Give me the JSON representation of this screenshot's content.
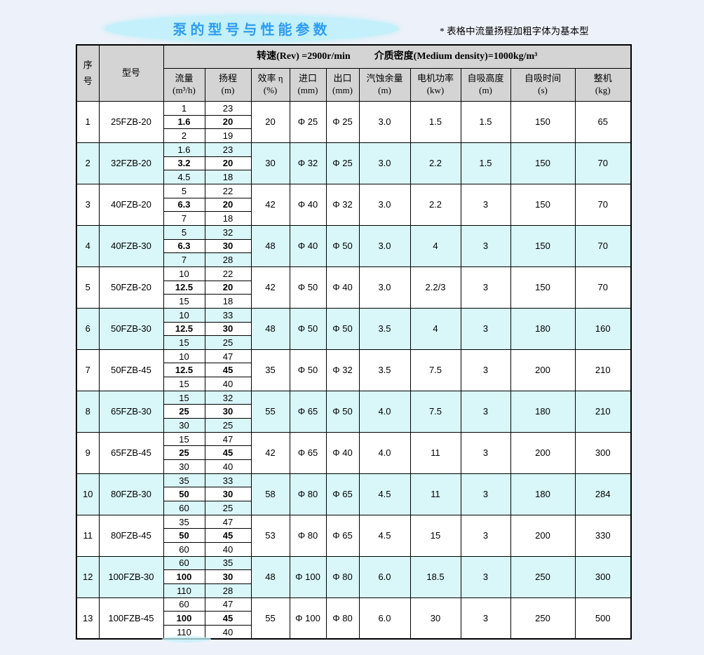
{
  "page": {
    "title": "泵的型号与性能参数",
    "note": "*  表格中流量扬程加粗字体为基本型"
  },
  "colors": {
    "page_background": "#edf1f9",
    "header_gray": "#d4d4d4",
    "alt_row_cyan": "#d9f6f8",
    "title_blue": "#2e9cf3",
    "ellipse_cyan": "#c3f0fa",
    "border_black": "#000000"
  },
  "table": {
    "corner_header": "序号",
    "model_header": "型号",
    "conditions": {
      "speed": "转速(Rev) =2900r/min",
      "density": "介质密度(Medium density)=1000kg/m³"
    },
    "sub_headers": [
      {
        "key": "flow",
        "label": "流量",
        "unit": "(m³/h)"
      },
      {
        "key": "head",
        "label": "扬程",
        "unit": "(m)"
      },
      {
        "key": "efficiency",
        "label": "效率 η",
        "unit": "(%)"
      },
      {
        "key": "inlet",
        "label": "进口",
        "unit": "(mm)"
      },
      {
        "key": "outlet",
        "label": "出口",
        "unit": "(mm)"
      },
      {
        "key": "npsh",
        "label": "汽蚀余量",
        "unit": "(m)"
      },
      {
        "key": "motor-power",
        "label": "电机功率",
        "unit": "(kw)"
      },
      {
        "key": "suction-height",
        "label": "自吸高度",
        "unit": "(m)"
      },
      {
        "key": "suction-time",
        "label": "自吸时间",
        "unit": "(s)"
      },
      {
        "key": "weight",
        "label": "整机",
        "unit": "(kg)"
      }
    ],
    "rows": [
      {
        "no": "1",
        "model": "25FZB-20",
        "flow": [
          "1",
          "1.6",
          "2"
        ],
        "head": [
          "23",
          "20",
          "19"
        ],
        "eff": "20",
        "inlet": "Φ 25",
        "outlet": "Φ 25",
        "npsh": "3.0",
        "power": "1.5",
        "suction_height": "1.5",
        "suction_time": "150",
        "weight": "65"
      },
      {
        "no": "2",
        "model": "32FZB-20",
        "flow": [
          "1.6",
          "3.2",
          "4.5"
        ],
        "head": [
          "23",
          "20",
          "18"
        ],
        "eff": "30",
        "inlet": "Φ 32",
        "outlet": "Φ 25",
        "npsh": "3.0",
        "power": "2.2",
        "suction_height": "1.5",
        "suction_time": "150",
        "weight": "70"
      },
      {
        "no": "3",
        "model": "40FZB-20",
        "flow": [
          "5",
          "6.3",
          "7"
        ],
        "head": [
          "22",
          "20",
          "18"
        ],
        "eff": "42",
        "inlet": "Φ 40",
        "outlet": "Φ 32",
        "npsh": "3.0",
        "power": "2.2",
        "suction_height": "3",
        "suction_time": "150",
        "weight": "70"
      },
      {
        "no": "4",
        "model": "40FZB-30",
        "flow": [
          "5",
          "6.3",
          "7"
        ],
        "head": [
          "32",
          "30",
          "28"
        ],
        "eff": "48",
        "inlet": "Φ 40",
        "outlet": "Φ 50",
        "npsh": "3.0",
        "power": "4",
        "suction_height": "3",
        "suction_time": "150",
        "weight": "70"
      },
      {
        "no": "5",
        "model": "50FZB-20",
        "flow": [
          "10",
          "12.5",
          "15"
        ],
        "head": [
          "22",
          "20",
          "18"
        ],
        "eff": "42",
        "inlet": "Φ 50",
        "outlet": "Φ 40",
        "npsh": "3.0",
        "power": "2.2/3",
        "suction_height": "3",
        "suction_time": "150",
        "weight": "70"
      },
      {
        "no": "6",
        "model": "50FZB-30",
        "flow": [
          "10",
          "12.5",
          "15"
        ],
        "head": [
          "33",
          "30",
          "25"
        ],
        "eff": "48",
        "inlet": "Φ 50",
        "outlet": "Φ 50",
        "npsh": "3.5",
        "power": "4",
        "suction_height": "3",
        "suction_time": "180",
        "weight": "160"
      },
      {
        "no": "7",
        "model": "50FZB-45",
        "flow": [
          "10",
          "12.5",
          "15"
        ],
        "head": [
          "47",
          "45",
          "40"
        ],
        "eff": "35",
        "inlet": "Φ 50",
        "outlet": "Φ 32",
        "npsh": "3.5",
        "power": "7.5",
        "suction_height": "3",
        "suction_time": "200",
        "weight": "210"
      },
      {
        "no": "8",
        "model": "65FZB-30",
        "flow": [
          "15",
          "25",
          "30"
        ],
        "head": [
          "32",
          "30",
          "25"
        ],
        "eff": "55",
        "inlet": "Φ 65",
        "outlet": "Φ 50",
        "npsh": "4.0",
        "power": "7.5",
        "suction_height": "3",
        "suction_time": "180",
        "weight": "210"
      },
      {
        "no": "9",
        "model": "65FZB-45",
        "flow": [
          "15",
          "25",
          "30"
        ],
        "head": [
          "47",
          "45",
          "40"
        ],
        "eff": "42",
        "inlet": "Φ 65",
        "outlet": "Φ 40",
        "npsh": "4.0",
        "power": "11",
        "suction_height": "3",
        "suction_time": "200",
        "weight": "300"
      },
      {
        "no": "10",
        "model": "80FZB-30",
        "flow": [
          "35",
          "50",
          "60"
        ],
        "head": [
          "33",
          "30",
          "25"
        ],
        "eff": "58",
        "inlet": "Φ 80",
        "outlet": "Φ 65",
        "npsh": "4.5",
        "power": "11",
        "suction_height": "3",
        "suction_time": "180",
        "weight": "284"
      },
      {
        "no": "11",
        "model": "80FZB-45",
        "flow": [
          "35",
          "50",
          "60"
        ],
        "head": [
          "47",
          "45",
          "40"
        ],
        "eff": "53",
        "inlet": "Φ 80",
        "outlet": "Φ 65",
        "npsh": "4.5",
        "power": "15",
        "suction_height": "3",
        "suction_time": "200",
        "weight": "330"
      },
      {
        "no": "12",
        "model": "100FZB-30",
        "flow": [
          "60",
          "100",
          "110"
        ],
        "head": [
          "35",
          "30",
          "28"
        ],
        "eff": "48",
        "inlet": "Φ 100",
        "outlet": "Φ 80",
        "npsh": "6.0",
        "power": "18.5",
        "suction_height": "3",
        "suction_time": "250",
        "weight": "300"
      },
      {
        "no": "13",
        "model": "100FZB-45",
        "flow": [
          "60",
          "100",
          "110"
        ],
        "head": [
          "47",
          "45",
          "40"
        ],
        "eff": "55",
        "inlet": "Φ 100",
        "outlet": "Φ 80",
        "npsh": "6.0",
        "power": "30",
        "suction_height": "3",
        "suction_time": "250",
        "weight": "500"
      }
    ]
  }
}
